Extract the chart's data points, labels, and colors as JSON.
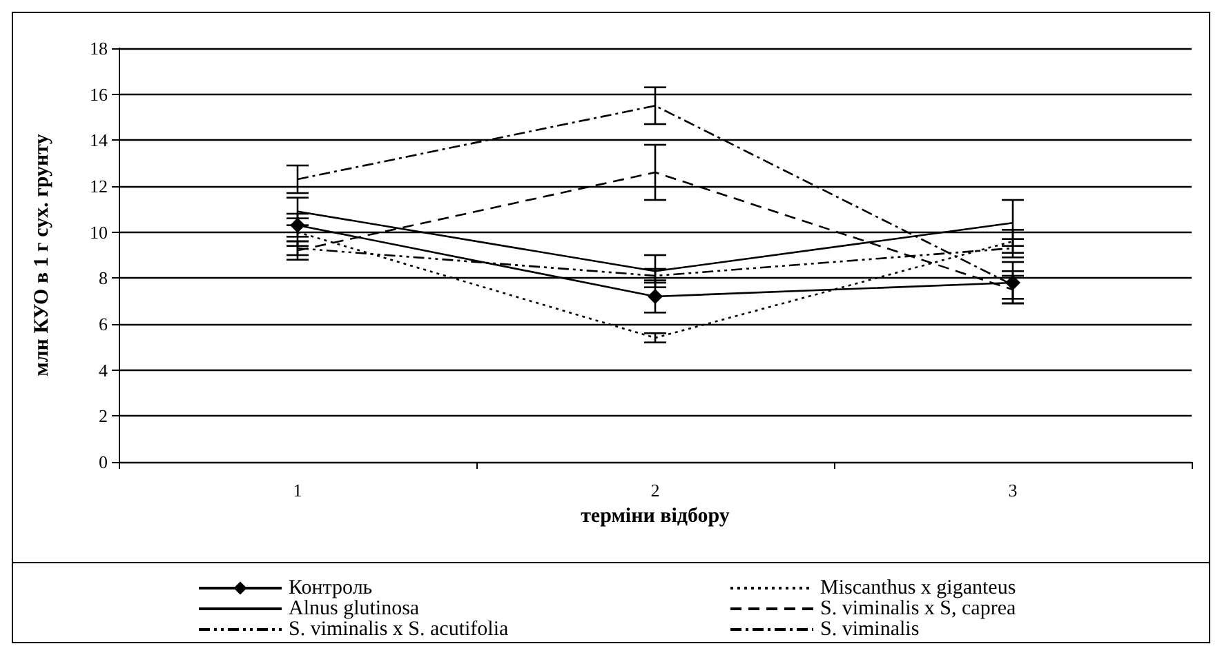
{
  "chart_data": {
    "type": "line",
    "xlabel": "терміни відбору",
    "ylabel": "млн КУО в 1 г сух. грунту",
    "categories": [
      "1",
      "2",
      "3"
    ],
    "ylim": [
      0,
      18
    ],
    "yticks": [
      0,
      2,
      4,
      6,
      8,
      10,
      12,
      14,
      16,
      18
    ],
    "grid": "y",
    "legend": "bottom",
    "series": [
      {
        "name": "Контроль",
        "color": "#000000",
        "values": [
          10.3,
          7.2,
          7.8
        ],
        "errors": [
          0.5,
          0.7,
          0.9
        ],
        "marker": "diamond",
        "line_style": "solid"
      },
      {
        "name": "Miscanthus x giganteus",
        "color": "#000000",
        "values": [
          10.0,
          5.4,
          9.6
        ],
        "errors": [
          0.6,
          0.2,
          0.5
        ],
        "marker": "none",
        "line_style": "dotted"
      },
      {
        "name": "Alnus glutinosa",
        "color": "#000000",
        "values": [
          10.9,
          8.3,
          10.4
        ],
        "errors": [
          0.6,
          0.7,
          1.0
        ],
        "marker": "none",
        "line_style": "solid"
      },
      {
        "name": "S. viminalis x S, caprea",
        "color": "#000000",
        "values": [
          9.2,
          12.6,
          7.5
        ],
        "errors": [
          0.4,
          1.2,
          0.6
        ],
        "marker": "none",
        "line_style": "dashed"
      },
      {
        "name": "S. viminalis x S. acutifolia",
        "color": "#000000",
        "values": [
          9.3,
          8.1,
          9.3
        ],
        "errors": [
          0.3,
          0.3,
          0.4
        ],
        "marker": "none",
        "line_style": "dashdotdot"
      },
      {
        "name": "S. viminalis",
        "color": "#000000",
        "values": [
          12.3,
          15.5,
          7.7
        ],
        "errors": [
          0.6,
          0.8,
          0.6
        ],
        "marker": "none",
        "line_style": "dashdot"
      }
    ]
  }
}
